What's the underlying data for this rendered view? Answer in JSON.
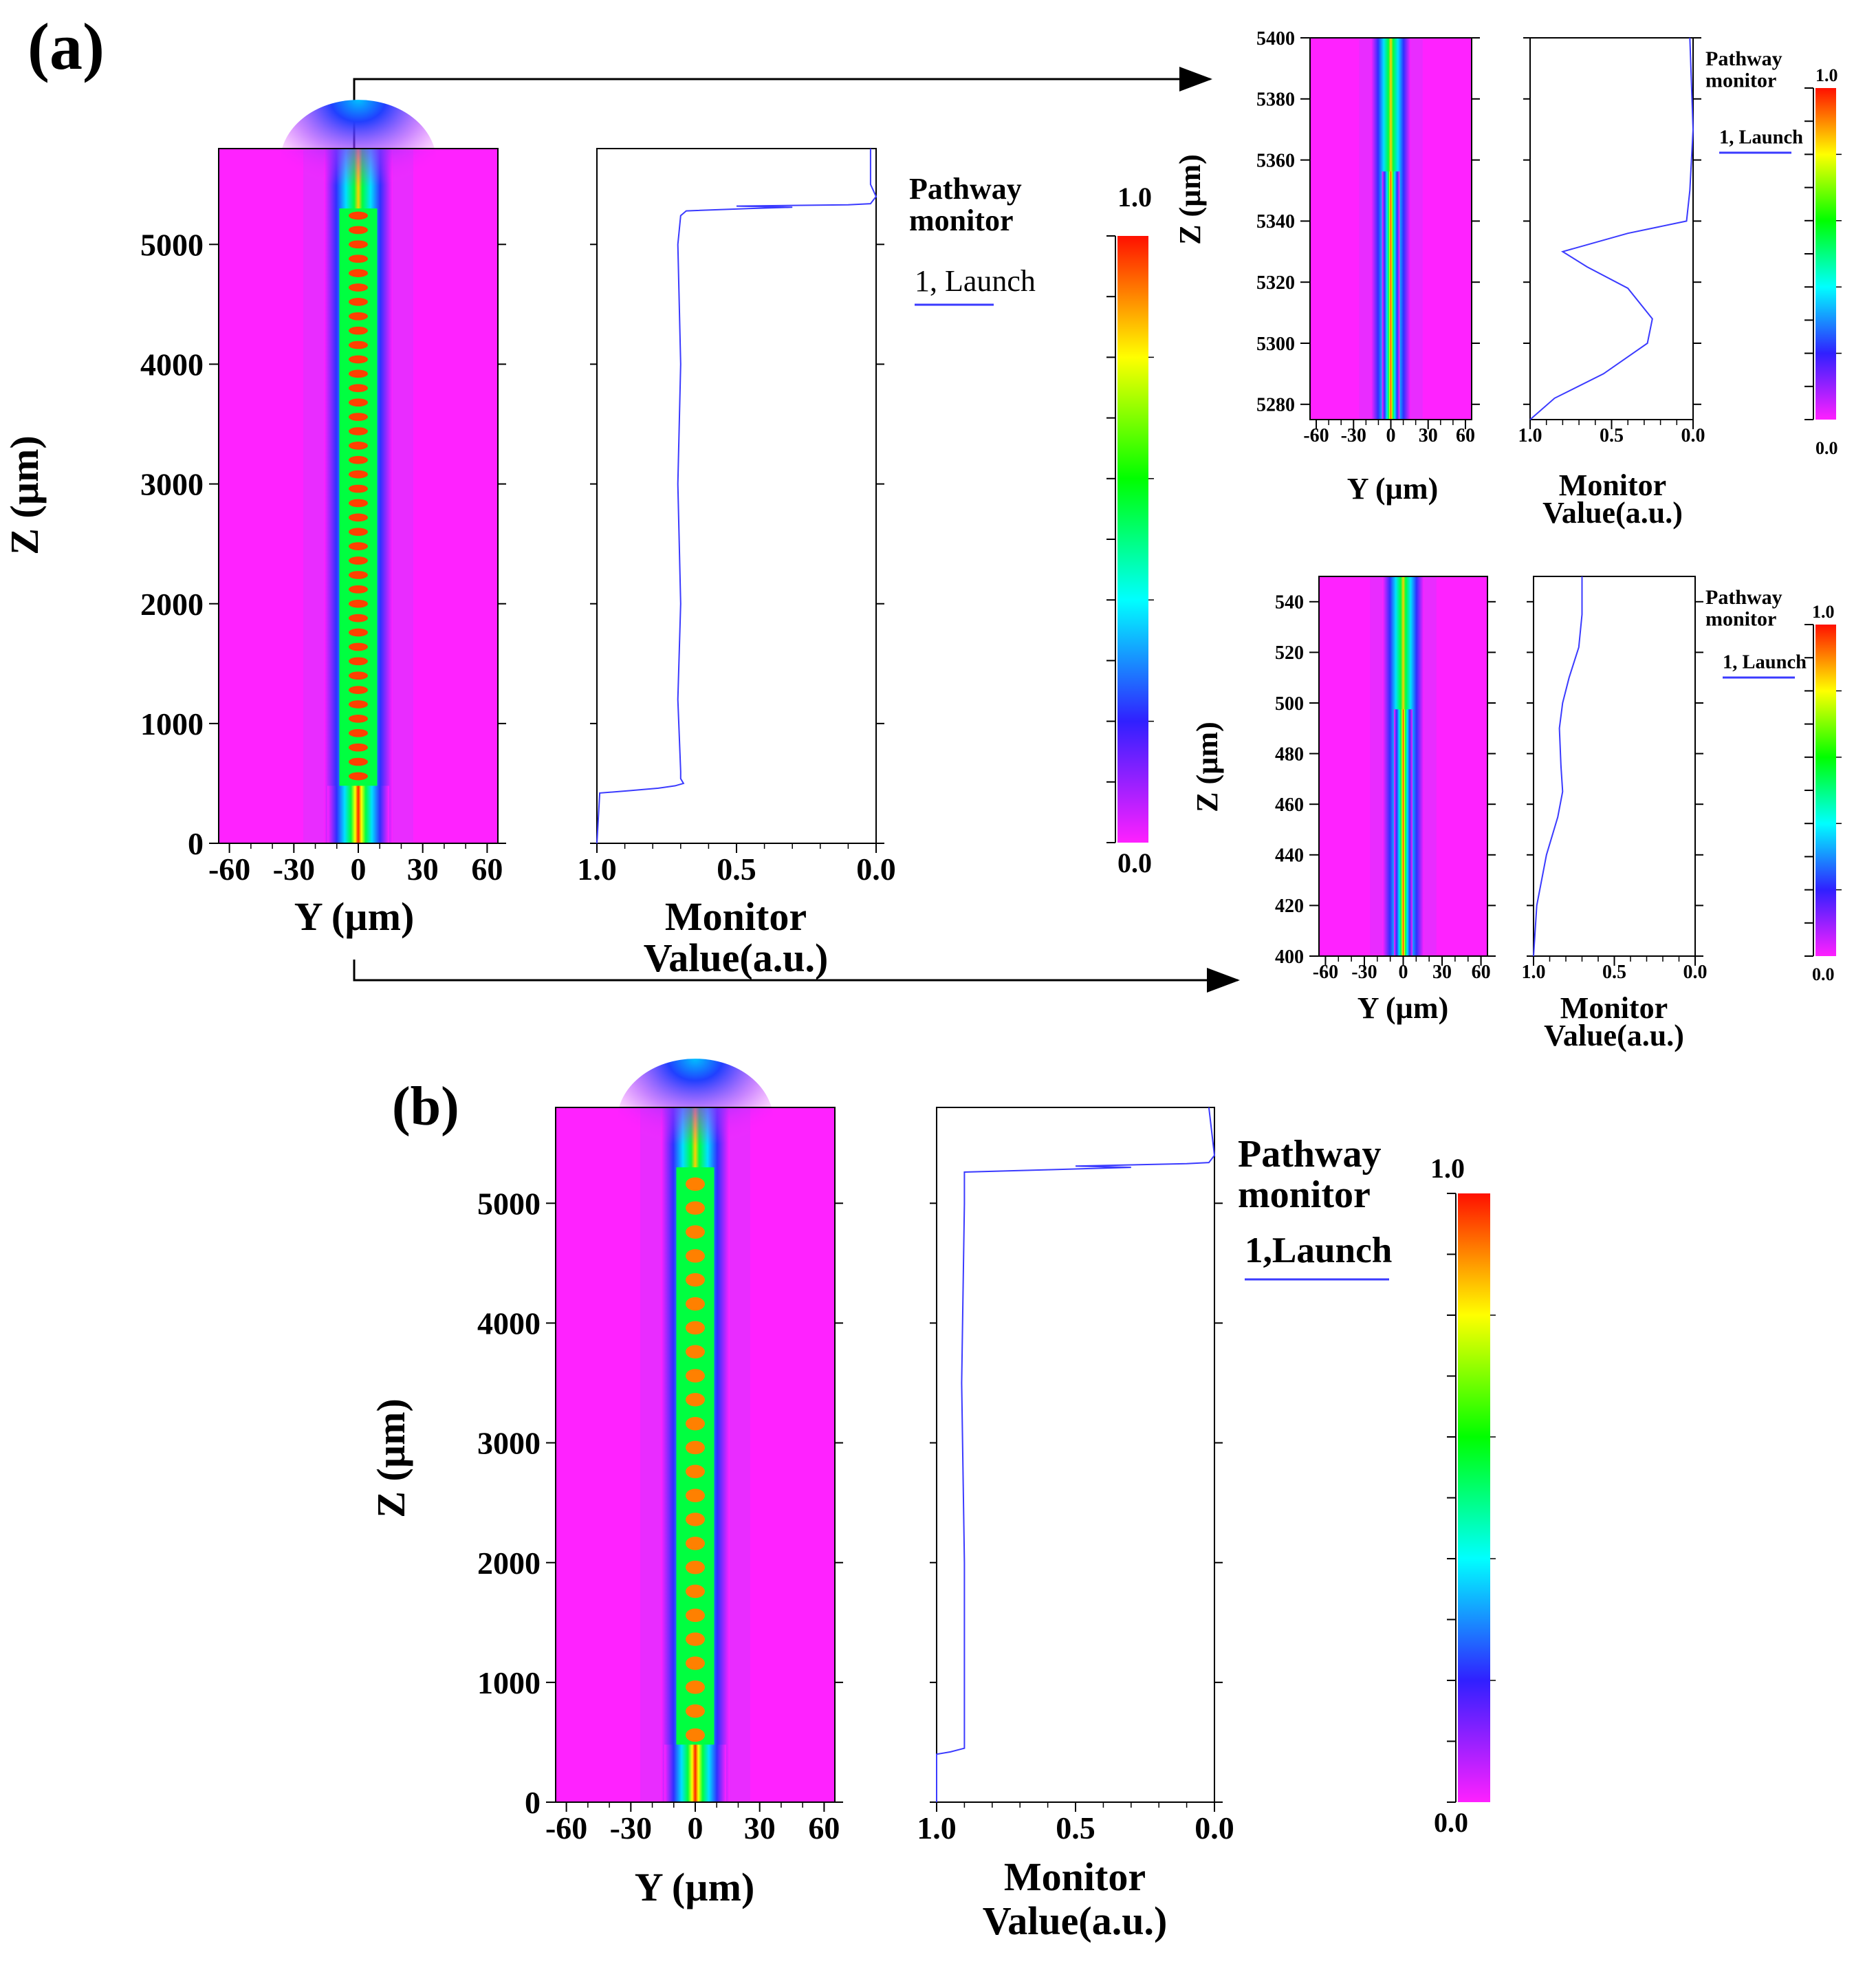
{
  "figure": {
    "panel_a_label": "(a)",
    "panel_b_label": "(b)"
  },
  "colors": {
    "background_field": "#ff22ff",
    "monitor_line": "#3a3aff",
    "colorbar_stops": [
      "#ff20ff",
      "#3020ff",
      "#00ffff",
      "#00ff00",
      "#ffff00",
      "#ff1000"
    ]
  },
  "chart_data": [
    {
      "id": "a-main",
      "type": "heatmap",
      "title": "",
      "xlabel": "Y (µm)",
      "ylabel": "Z (µm)",
      "xlim": [
        -65,
        65
      ],
      "ylim": [
        0,
        5800
      ],
      "xticks": [
        "-60",
        "-30",
        "0",
        "30",
        "60"
      ],
      "yticks": [
        "0",
        "1000",
        "2000",
        "3000",
        "4000",
        "5000"
      ],
      "field": {
        "core_center": 0,
        "core_half_width": 5,
        "input_end": 480,
        "taper_start": 5380,
        "beating_period": 120
      },
      "monitor": {
        "xlabel_line1": "Monitor",
        "xlabel_line2": "Value(a.u.)",
        "xlim": [
          1.0,
          0.0
        ],
        "xticks": [
          "1.0",
          "0.5",
          "0.0"
        ],
        "legend_title_line1": "Pathway",
        "legend_title_line2": "monitor",
        "legend_entry": "1, Launch",
        "points": [
          [
            1.0,
            0
          ],
          [
            0.99,
            420
          ],
          [
            0.88,
            440
          ],
          [
            0.78,
            460
          ],
          [
            0.72,
            480
          ],
          [
            0.69,
            500
          ],
          [
            0.7,
            540
          ],
          [
            0.7,
            600
          ],
          [
            0.71,
            1200
          ],
          [
            0.7,
            2000
          ],
          [
            0.71,
            3000
          ],
          [
            0.7,
            4000
          ],
          [
            0.71,
            5000
          ],
          [
            0.7,
            5240
          ],
          [
            0.68,
            5280
          ],
          [
            0.45,
            5300
          ],
          [
            0.3,
            5310
          ],
          [
            0.5,
            5320
          ],
          [
            0.1,
            5330
          ],
          [
            0.02,
            5340
          ],
          [
            0.0,
            5400
          ],
          [
            0.02,
            5500
          ],
          [
            0.02,
            5800
          ]
        ]
      },
      "colorbar": {
        "max_label": "1.0",
        "min_label": "0.0"
      }
    },
    {
      "id": "a-inset-top",
      "type": "heatmap",
      "xlabel": "Y (µm)",
      "ylabel": "Z (µm)",
      "xlim": [
        -65,
        65
      ],
      "ylim": [
        5275,
        5400
      ],
      "xticks": [
        "-60",
        "-30",
        "0",
        "30",
        "60"
      ],
      "yticks": [
        "5280",
        "5300",
        "5320",
        "5340",
        "5360",
        "5380",
        "5400"
      ],
      "monitor": {
        "xlabel_line1": "Monitor",
        "xlabel_line2": "Value(a.u.)",
        "xlim": [
          1.0,
          0.0
        ],
        "xticks": [
          "1.0",
          "0.5",
          "0.0"
        ],
        "legend_title_line1": "Pathway",
        "legend_title_line2": "monitor",
        "legend_entry": "1, Launch",
        "points": [
          [
            1.0,
            5275
          ],
          [
            0.85,
            5282
          ],
          [
            0.55,
            5290
          ],
          [
            0.28,
            5300
          ],
          [
            0.25,
            5308
          ],
          [
            0.4,
            5318
          ],
          [
            0.65,
            5325
          ],
          [
            0.8,
            5330
          ],
          [
            0.4,
            5336
          ],
          [
            0.04,
            5340
          ],
          [
            0.02,
            5350
          ],
          [
            0.0,
            5370
          ],
          [
            0.02,
            5400
          ]
        ]
      },
      "colorbar": {
        "max_label": "1.0",
        "min_label": "0.0"
      }
    },
    {
      "id": "a-inset-bottom",
      "type": "heatmap",
      "xlabel": "Y (µm)",
      "ylabel": "Z (µm)",
      "xlim": [
        -65,
        65
      ],
      "ylim": [
        400,
        550
      ],
      "xticks": [
        "-60",
        "-30",
        "0",
        "30",
        "60"
      ],
      "yticks": [
        "400",
        "420",
        "440",
        "460",
        "480",
        "500",
        "520",
        "540"
      ],
      "monitor": {
        "xlabel_line1": "Monitor",
        "xlabel_line2": "Value(a.u.)",
        "xlim": [
          1.0,
          0.0
        ],
        "xticks": [
          "1.0",
          "0.5",
          "0.0"
        ],
        "legend_title_line1": "Pathway",
        "legend_title_line2": "monitor",
        "legend_entry": "1, Launch",
        "points": [
          [
            1.0,
            400
          ],
          [
            0.98,
            420
          ],
          [
            0.92,
            440
          ],
          [
            0.85,
            455
          ],
          [
            0.82,
            465
          ],
          [
            0.83,
            475
          ],
          [
            0.84,
            490
          ],
          [
            0.82,
            500
          ],
          [
            0.78,
            510
          ],
          [
            0.72,
            522
          ],
          [
            0.7,
            535
          ],
          [
            0.7,
            550
          ]
        ]
      },
      "colorbar": {
        "max_label": "1.0",
        "min_label": "0.0"
      }
    },
    {
      "id": "b-main",
      "type": "heatmap",
      "xlabel": "Y (µm)",
      "ylabel": "Z (µm)",
      "xlim": [
        -65,
        65
      ],
      "ylim": [
        0,
        5800
      ],
      "xticks": [
        "-60",
        "-30",
        "0",
        "30",
        "60"
      ],
      "yticks": [
        "0",
        "1000",
        "2000",
        "3000",
        "4000",
        "5000"
      ],
      "monitor": {
        "xlabel_line1": "Monitor",
        "xlabel_line2": "Value(a.u.)",
        "xlim": [
          1.0,
          0.0
        ],
        "xticks": [
          "1.0",
          "0.5",
          "0.0"
        ],
        "legend_title_line1": "Pathway",
        "legend_title_line2": "monitor",
        "legend_entry": "1,Launch",
        "points": [
          [
            1.0,
            0
          ],
          [
            1.0,
            400
          ],
          [
            0.95,
            420
          ],
          [
            0.9,
            450
          ],
          [
            0.9,
            2000
          ],
          [
            0.91,
            3500
          ],
          [
            0.9,
            5000
          ],
          [
            0.9,
            5260
          ],
          [
            0.6,
            5280
          ],
          [
            0.3,
            5300
          ],
          [
            0.5,
            5310
          ],
          [
            0.1,
            5330
          ],
          [
            0.02,
            5340
          ],
          [
            0.0,
            5400
          ],
          [
            0.02,
            5800
          ]
        ]
      },
      "colorbar": {
        "max_label": "1.0",
        "min_label": "0.0"
      }
    }
  ]
}
